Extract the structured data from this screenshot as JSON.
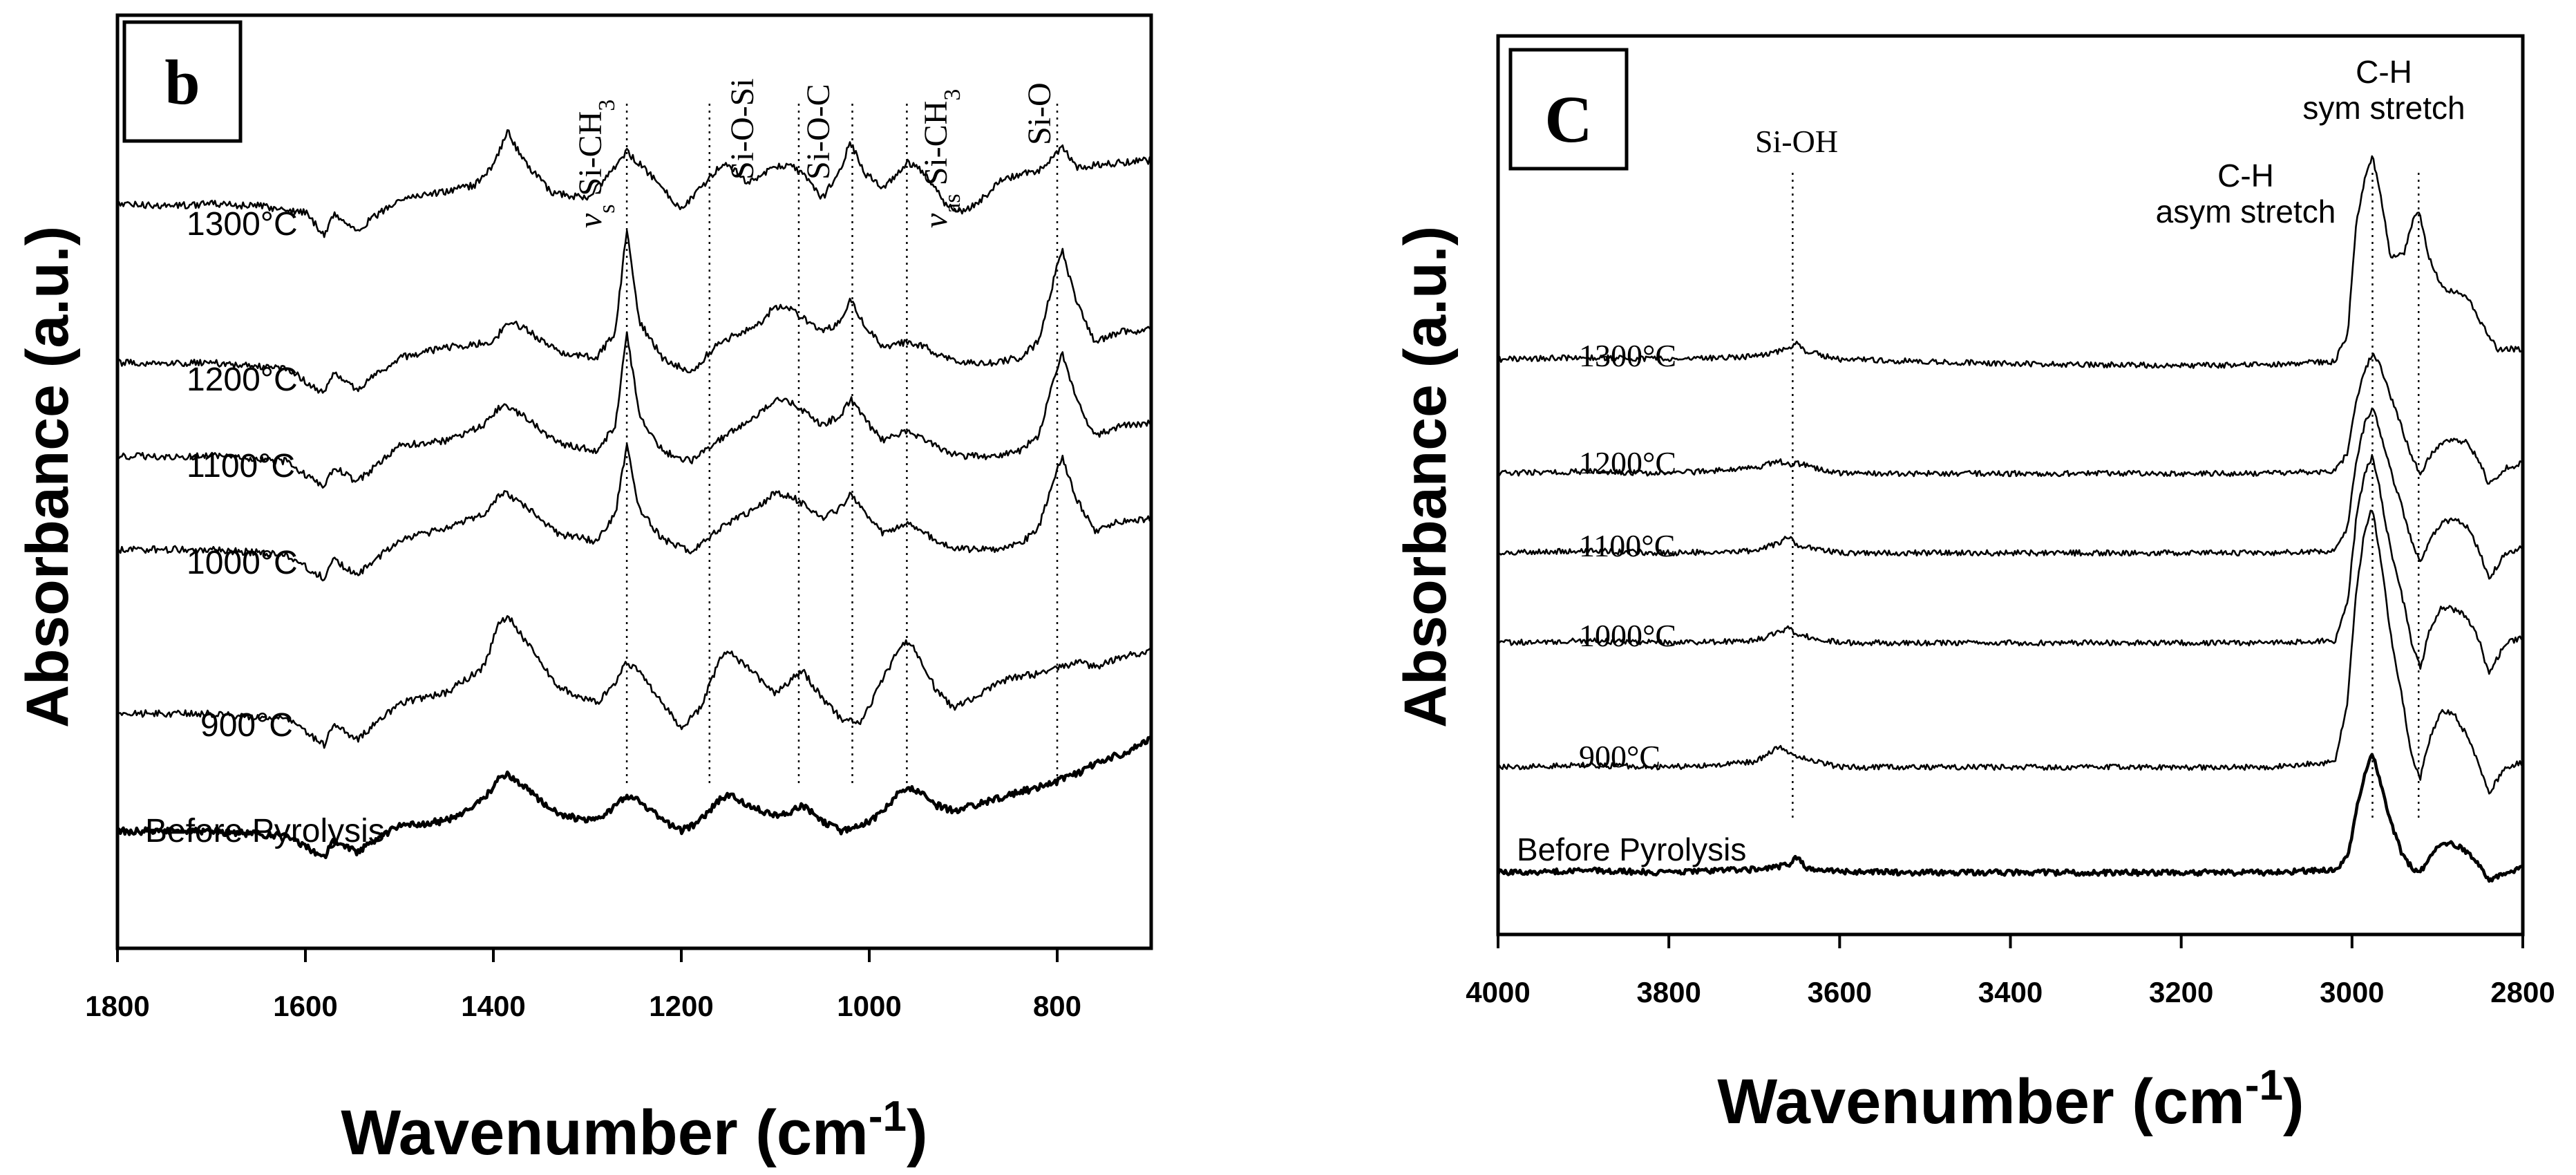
{
  "chart_data": [
    {
      "type": "line",
      "panel_label": "b",
      "xlabel": "Wavenumber (cm",
      "xlabel_sup": "-1",
      "xlabel_close": ")",
      "ylabel": "Absorbance (a.u.)",
      "xlim": [
        1800,
        700
      ],
      "xlim_note": "reversed axis, high to low",
      "x_ticks": [
        "1800",
        "1600",
        "1400",
        "1200",
        "1000",
        "800"
      ],
      "y_ticks": "none",
      "grid": false,
      "legend": "none",
      "series": [
        {
          "name": "1300°C",
          "x": [
            1800,
            1750,
            1700,
            1650,
            1600,
            1580,
            1570,
            1545,
            1500,
            1450,
            1420,
            1400,
            1385,
            1370,
            1340,
            1300,
            1275,
            1258,
            1240,
            1200,
            1160,
            1150,
            1130,
            1100,
            1085,
            1070,
            1050,
            1030,
            1020,
            1005,
            985,
            960,
            940,
            920,
            900,
            880,
            860,
            840,
            820,
            805,
            795,
            780,
            760,
            730,
            700
          ],
          "y": [
            0.5,
            0.48,
            0.5,
            0.48,
            0.42,
            0.2,
            0.4,
            0.25,
            0.55,
            0.62,
            0.68,
            0.88,
            1.2,
            0.95,
            0.62,
            0.55,
            0.8,
            1.0,
            0.85,
            0.45,
            0.85,
            0.9,
            0.7,
            0.85,
            0.88,
            0.78,
            0.55,
            0.85,
            1.1,
            0.8,
            0.65,
            0.9,
            0.8,
            0.5,
            0.42,
            0.55,
            0.72,
            0.78,
            0.82,
            0.95,
            1.05,
            0.85,
            0.88,
            0.9,
            0.92
          ]
        },
        {
          "name": "1200°C",
          "x": [
            1800,
            1700,
            1620,
            1580,
            1570,
            1545,
            1500,
            1450,
            1400,
            1385,
            1370,
            1330,
            1290,
            1270,
            1258,
            1245,
            1220,
            1190,
            1160,
            1120,
            1100,
            1080,
            1050,
            1030,
            1020,
            1000,
            985,
            960,
            940,
            920,
            900,
            870,
            840,
            820,
            805,
            795,
            780,
            760,
            730,
            700
          ],
          "y": [
            0.4,
            0.4,
            0.35,
            0.1,
            0.3,
            0.15,
            0.45,
            0.55,
            0.6,
            0.8,
            0.75,
            0.5,
            0.45,
            0.7,
            1.7,
            0.8,
            0.45,
            0.3,
            0.6,
            0.75,
            0.95,
            0.9,
            0.7,
            0.8,
            1.0,
            0.7,
            0.55,
            0.6,
            0.55,
            0.45,
            0.4,
            0.4,
            0.45,
            0.6,
            1.15,
            1.5,
            1.0,
            0.6,
            0.7,
            0.72
          ]
        },
        {
          "name": "1100°C",
          "x": [
            1800,
            1700,
            1620,
            1580,
            1570,
            1545,
            1500,
            1450,
            1410,
            1390,
            1370,
            1330,
            1290,
            1270,
            1258,
            1245,
            1220,
            1190,
            1160,
            1120,
            1100,
            1080,
            1050,
            1030,
            1020,
            1000,
            985,
            960,
            940,
            920,
            900,
            870,
            840,
            820,
            805,
            795,
            780,
            760,
            730,
            700
          ],
          "y": [
            0.4,
            0.4,
            0.35,
            0.1,
            0.3,
            0.15,
            0.5,
            0.55,
            0.7,
            0.9,
            0.8,
            0.52,
            0.45,
            0.7,
            1.6,
            0.8,
            0.45,
            0.35,
            0.55,
            0.8,
            0.95,
            0.9,
            0.7,
            0.8,
            0.95,
            0.7,
            0.55,
            0.65,
            0.55,
            0.45,
            0.4,
            0.4,
            0.45,
            0.6,
            1.1,
            1.4,
            0.95,
            0.6,
            0.7,
            0.72
          ]
        },
        {
          "name": "1000°C",
          "x": [
            1800,
            1700,
            1620,
            1580,
            1570,
            1545,
            1500,
            1450,
            1410,
            1390,
            1370,
            1330,
            1290,
            1270,
            1258,
            1245,
            1220,
            1190,
            1160,
            1120,
            1100,
            1080,
            1050,
            1030,
            1020,
            1000,
            985,
            960,
            940,
            920,
            900,
            870,
            840,
            820,
            805,
            795,
            780,
            760,
            730,
            700
          ],
          "y": [
            0.4,
            0.4,
            0.35,
            0.12,
            0.3,
            0.15,
            0.5,
            0.6,
            0.75,
            0.95,
            0.85,
            0.55,
            0.48,
            0.75,
            1.4,
            0.8,
            0.5,
            0.38,
            0.6,
            0.8,
            0.95,
            0.9,
            0.7,
            0.8,
            0.95,
            0.7,
            0.55,
            0.65,
            0.55,
            0.45,
            0.4,
            0.4,
            0.45,
            0.6,
            1.05,
            1.3,
            0.9,
            0.58,
            0.68,
            0.7
          ]
        },
        {
          "name": "900°C",
          "x": [
            1800,
            1700,
            1620,
            1580,
            1570,
            1545,
            1500,
            1450,
            1410,
            1395,
            1385,
            1370,
            1330,
            1290,
            1270,
            1258,
            1245,
            1220,
            1200,
            1180,
            1160,
            1150,
            1130,
            1100,
            1080,
            1070,
            1050,
            1030,
            1010,
            990,
            970,
            960,
            950,
            930,
            910,
            890,
            870,
            850,
            830,
            810,
            795,
            780,
            760,
            730,
            700
          ],
          "y": [
            0.45,
            0.45,
            0.4,
            0.15,
            0.35,
            0.2,
            0.55,
            0.65,
            0.9,
            1.3,
            1.4,
            1.2,
            0.7,
            0.55,
            0.75,
            0.95,
            0.85,
            0.55,
            0.3,
            0.5,
            0.95,
            1.05,
            0.9,
            0.65,
            0.8,
            0.85,
            0.6,
            0.4,
            0.35,
            0.7,
            1.05,
            1.15,
            1.05,
            0.7,
            0.5,
            0.6,
            0.7,
            0.8,
            0.82,
            0.85,
            0.9,
            0.95,
            0.9,
            1.0,
            1.05
          ]
        },
        {
          "name": "Before Pyrolysis",
          "x": [
            1800,
            1700,
            1620,
            1580,
            1570,
            1545,
            1500,
            1450,
            1410,
            1395,
            1385,
            1370,
            1330,
            1290,
            1270,
            1258,
            1245,
            1220,
            1200,
            1180,
            1160,
            1150,
            1130,
            1100,
            1080,
            1070,
            1050,
            1030,
            1010,
            990,
            970,
            960,
            950,
            930,
            910,
            890,
            870,
            850,
            830,
            810,
            795,
            780,
            760,
            730,
            700
          ],
          "y": [
            0.45,
            0.45,
            0.4,
            0.2,
            0.35,
            0.25,
            0.5,
            0.55,
            0.75,
            0.95,
            1.0,
            0.9,
            0.6,
            0.55,
            0.7,
            0.8,
            0.75,
            0.55,
            0.45,
            0.55,
            0.75,
            0.8,
            0.7,
            0.6,
            0.65,
            0.7,
            0.55,
            0.45,
            0.5,
            0.6,
            0.8,
            0.88,
            0.85,
            0.7,
            0.65,
            0.7,
            0.75,
            0.8,
            0.85,
            0.9,
            0.95,
            1.0,
            1.1,
            1.2,
            1.35
          ]
        }
      ],
      "reference_lines": [
        {
          "x": 1258,
          "label": "Si-CH",
          "label_sub": "3",
          "prefix": "ν",
          "prefix_sub": "s"
        },
        {
          "x": 1170,
          "label": "Si-O-Si"
        },
        {
          "x": 1075,
          "label": "Si-O-C"
        },
        {
          "x": 1018
        },
        {
          "x": 960,
          "label": "Si-CH",
          "label_sub": "3",
          "prefix": "ν",
          "prefix_sub": "as"
        },
        {
          "x": 800,
          "label": "Si-O"
        }
      ]
    },
    {
      "type": "line",
      "panel_label": "C",
      "xlabel": "Wavenumber (cm",
      "xlabel_sup": "-1",
      "xlabel_close": ")",
      "ylabel": "Absorbance (a.u.)",
      "xlim": [
        4000,
        2800
      ],
      "xlim_note": "reversed axis, high to low",
      "x_ticks": [
        "4000",
        "3800",
        "3600",
        "3400",
        "3200",
        "3000",
        "2800"
      ],
      "y_ticks": "none",
      "grid": false,
      "legend": "none",
      "series": [
        {
          "name": "1300°C",
          "x": [
            4000,
            3900,
            3800,
            3700,
            3660,
            3650,
            3640,
            3600,
            3500,
            3400,
            3300,
            3200,
            3100,
            3020,
            3005,
            2995,
            2985,
            2976,
            2968,
            2955,
            2940,
            2930,
            2922,
            2910,
            2895,
            2880,
            2865,
            2855,
            2845,
            2830,
            2800
          ],
          "y": [
            0.3,
            0.32,
            0.3,
            0.33,
            0.4,
            0.45,
            0.38,
            0.3,
            0.28,
            0.26,
            0.25,
            0.24,
            0.25,
            0.28,
            0.55,
            1.6,
            2.05,
            2.25,
            1.95,
            1.3,
            1.3,
            1.6,
            1.75,
            1.3,
            1.0,
            0.95,
            0.9,
            0.75,
            0.6,
            0.4,
            0.4
          ]
        },
        {
          "name": "1200°C",
          "x": [
            4000,
            3900,
            3800,
            3700,
            3670,
            3660,
            3650,
            3600,
            3500,
            3400,
            3300,
            3200,
            3100,
            3020,
            3005,
            2995,
            2985,
            2976,
            2968,
            2955,
            2940,
            2930,
            2920,
            2910,
            2895,
            2880,
            2865,
            2850,
            2840,
            2820,
            2800
          ],
          "y": [
            0.3,
            0.32,
            0.3,
            0.35,
            0.42,
            0.38,
            0.4,
            0.3,
            0.3,
            0.3,
            0.3,
            0.3,
            0.3,
            0.32,
            0.5,
            1.0,
            1.3,
            1.45,
            1.35,
            1.05,
            0.7,
            0.45,
            0.3,
            0.45,
            0.6,
            0.62,
            0.6,
            0.4,
            0.2,
            0.35,
            0.4
          ]
        },
        {
          "name": "1100°C",
          "x": [
            4000,
            3900,
            3800,
            3700,
            3670,
            3660,
            3650,
            3600,
            3500,
            3400,
            3300,
            3200,
            3100,
            3020,
            3005,
            2995,
            2985,
            2976,
            2968,
            2955,
            2940,
            2930,
            2920,
            2910,
            2895,
            2880,
            2865,
            2850,
            2840,
            2820,
            2800
          ],
          "y": [
            0.3,
            0.32,
            0.3,
            0.32,
            0.4,
            0.45,
            0.38,
            0.3,
            0.3,
            0.3,
            0.3,
            0.3,
            0.3,
            0.32,
            0.55,
            1.2,
            1.55,
            1.7,
            1.5,
            1.1,
            0.7,
            0.4,
            0.2,
            0.4,
            0.6,
            0.62,
            0.55,
            0.3,
            0.05,
            0.3,
            0.35
          ]
        },
        {
          "name": "1000°C",
          "x": [
            4000,
            3900,
            3800,
            3700,
            3670,
            3660,
            3650,
            3600,
            3500,
            3400,
            3300,
            3200,
            3100,
            3020,
            3005,
            2995,
            2985,
            2976,
            2968,
            2955,
            2940,
            2930,
            2920,
            2910,
            2895,
            2880,
            2865,
            2850,
            2840,
            2820,
            2800
          ],
          "y": [
            0.3,
            0.32,
            0.3,
            0.32,
            0.4,
            0.45,
            0.38,
            0.3,
            0.3,
            0.3,
            0.3,
            0.3,
            0.3,
            0.32,
            0.7,
            1.5,
            1.95,
            2.1,
            1.8,
            1.2,
            0.7,
            0.3,
            0.05,
            0.4,
            0.65,
            0.62,
            0.55,
            0.3,
            0.0,
            0.3,
            0.35
          ]
        },
        {
          "name": "900°C",
          "x": [
            4000,
            3900,
            3800,
            3700,
            3670,
            3660,
            3650,
            3600,
            3500,
            3400,
            3300,
            3200,
            3100,
            3020,
            3005,
            2995,
            2985,
            2976,
            2968,
            2955,
            2940,
            2930,
            2920,
            2910,
            2895,
            2880,
            2865,
            2850,
            2840,
            2820,
            2800
          ],
          "y": [
            0.3,
            0.32,
            0.3,
            0.35,
            0.5,
            0.45,
            0.4,
            0.3,
            0.3,
            0.3,
            0.3,
            0.3,
            0.3,
            0.35,
            0.95,
            2.0,
            2.6,
            2.8,
            2.4,
            1.6,
            0.9,
            0.4,
            0.2,
            0.55,
            0.85,
            0.8,
            0.6,
            0.3,
            0.05,
            0.3,
            0.35
          ]
        },
        {
          "name": "Before Pyrolysis",
          "x": [
            4000,
            3900,
            3800,
            3700,
            3660,
            3650,
            3640,
            3600,
            3500,
            3400,
            3300,
            3200,
            3100,
            3020,
            3005,
            2995,
            2985,
            2976,
            2968,
            2955,
            2940,
            2930,
            2920,
            2910,
            2895,
            2880,
            2865,
            2850,
            2840,
            2820,
            2800
          ],
          "y": [
            0.25,
            0.27,
            0.25,
            0.28,
            0.32,
            0.4,
            0.3,
            0.26,
            0.25,
            0.25,
            0.25,
            0.25,
            0.25,
            0.28,
            0.4,
            0.85,
            1.2,
            1.4,
            1.15,
            0.75,
            0.4,
            0.3,
            0.25,
            0.4,
            0.55,
            0.52,
            0.45,
            0.3,
            0.18,
            0.25,
            0.3
          ]
        }
      ],
      "reference_lines": [
        {
          "x": 3655,
          "label": "Si-OH"
        },
        {
          "x": 2976,
          "label_lines": [
            "C-H",
            "asym stretch"
          ]
        },
        {
          "x": 2922,
          "label_lines": [
            "C-H",
            "sym stretch"
          ]
        }
      ]
    }
  ]
}
